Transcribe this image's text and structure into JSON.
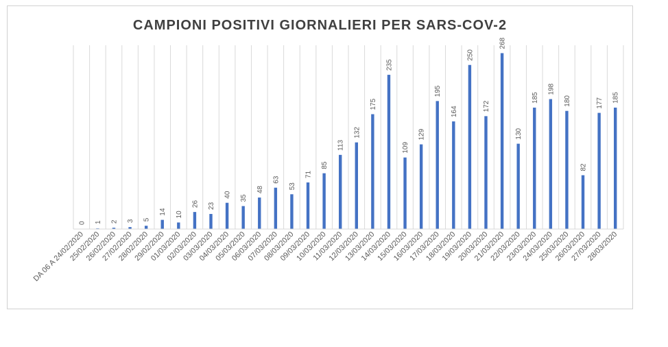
{
  "chart_data": {
    "type": "bar",
    "title": "CAMPIONI POSITIVI GIORNALIERI PER SARS-COV-2",
    "xlabel": "",
    "ylabel": "",
    "grid": "vertical",
    "legend": "none",
    "bar_color": "#4472C4",
    "gridline_color": "#D9D9D9",
    "label_color": "#595959",
    "categories": [
      "DA 06 A 24/02/2020",
      "25/02/2020",
      "26/02/2020",
      "27/02/2020",
      "28/02/2020",
      "29/02/2020",
      "01/03/2020",
      "02/03/2020",
      "03/03/2020",
      "04/03/2020",
      "05/03/2020",
      "06/03/2020",
      "07/03/2020",
      "08/03/2020",
      "09/03/2020",
      "10/03/2020",
      "11/03/2020",
      "12/03/2020",
      "13/03/2020",
      "14/03/2020",
      "15/03/2020",
      "16/03/2020",
      "17/03/2020",
      "18/03/2020",
      "19/03/2020",
      "20/03/2020",
      "21/03/2020",
      "22/03/2020",
      "23/03/2020",
      "24/03/2020",
      "25/03/2020",
      "26/03/2020",
      "27/03/2020",
      "28/03/2020"
    ],
    "values": [
      0,
      1,
      2,
      3,
      5,
      14,
      10,
      26,
      23,
      40,
      35,
      48,
      63,
      53,
      71,
      85,
      113,
      132,
      175,
      235,
      109,
      129,
      195,
      164,
      250,
      172,
      268,
      130,
      185,
      198,
      180,
      82,
      177,
      185
    ],
    "ylim": [
      0,
      280
    ]
  }
}
